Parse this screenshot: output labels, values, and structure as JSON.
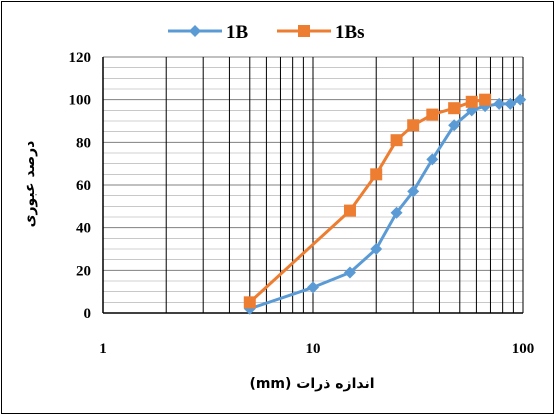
{
  "chart_data": {
    "type": "line",
    "x_scale": "log",
    "xlim": [
      1,
      100
    ],
    "ylim": [
      0,
      120
    ],
    "x_ticks": [
      "1",
      "10",
      "100"
    ],
    "y_ticks": [
      "0",
      "20",
      "40",
      "60",
      "80",
      "100",
      "120"
    ],
    "xlabel": "اندازه ذرات  (mm)",
    "ylabel": "درصد عبوری",
    "grid": true,
    "legend_position": "top",
    "series": [
      {
        "name": "1B",
        "color": "#5B9BD5",
        "marker": "diamond",
        "x": [
          5,
          10,
          15,
          20,
          25,
          30,
          37,
          47,
          57,
          66,
          77,
          87,
          97
        ],
        "y": [
          2,
          12,
          19,
          30,
          47,
          57,
          72,
          88,
          95,
          97,
          98,
          98,
          100
        ]
      },
      {
        "name": "1Bs",
        "color": "#ED7D31",
        "marker": "square",
        "x": [
          5,
          15,
          20,
          25,
          30,
          37,
          47,
          57,
          66
        ],
        "y": [
          5,
          48,
          65,
          81,
          88,
          93,
          96,
          99,
          100
        ]
      }
    ]
  }
}
